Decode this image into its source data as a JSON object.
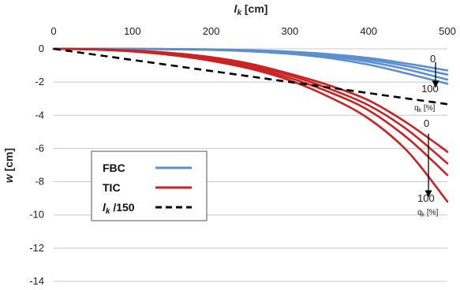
{
  "chart_data": {
    "type": "line",
    "x_axis": {
      "label": "lk [cm]",
      "position": "top",
      "range": [
        0,
        500
      ],
      "ticks": [
        0,
        100,
        200,
        300,
        400,
        500
      ]
    },
    "y_axis": {
      "label": "w [cm]",
      "range": [
        -14,
        0
      ],
      "ticks": [
        0,
        -2,
        -4,
        -6,
        -8,
        -10,
        -12,
        -14
      ]
    },
    "grid": "horizontal",
    "legend": {
      "placement": "lower-left",
      "entries": [
        {
          "label": "FBC",
          "color": "#5b8fd0",
          "style": "solid"
        },
        {
          "label": "TIC",
          "color": "#cc2222",
          "style": "solid"
        },
        {
          "label": "lk /150",
          "color": "#000000",
          "style": "dashed"
        }
      ]
    },
    "series": [
      {
        "group": "FBC",
        "color": "#5b8fd0",
        "x": [
          0,
          100,
          200,
          250,
          300,
          350,
          400,
          450,
          500
        ],
        "y": [
          0,
          0,
          -0.03,
          -0.08,
          -0.17,
          -0.32,
          -0.55,
          -0.9,
          -1.3
        ]
      },
      {
        "group": "FBC",
        "color": "#5b8fd0",
        "x": [
          0,
          100,
          200,
          250,
          300,
          350,
          400,
          450,
          500
        ],
        "y": [
          0,
          0,
          -0.04,
          -0.1,
          -0.2,
          -0.38,
          -0.65,
          -1.05,
          -1.55
        ]
      },
      {
        "group": "FBC",
        "color": "#5b8fd0",
        "x": [
          0,
          100,
          200,
          250,
          300,
          350,
          400,
          450,
          500
        ],
        "y": [
          0,
          0,
          -0.05,
          -0.12,
          -0.25,
          -0.45,
          -0.78,
          -1.25,
          -1.85
        ]
      },
      {
        "group": "FBC",
        "color": "#5b8fd0",
        "x": [
          0,
          100,
          200,
          250,
          300,
          350,
          400,
          450,
          500
        ],
        "y": [
          0,
          -0.01,
          -0.06,
          -0.15,
          -0.3,
          -0.55,
          -0.95,
          -1.5,
          -2.1
        ]
      },
      {
        "group": "TIC",
        "color": "#cc2222",
        "x": [
          0,
          50,
          100,
          150,
          200,
          250,
          300,
          350,
          400,
          450,
          500
        ],
        "y": [
          0,
          -0.02,
          -0.1,
          -0.25,
          -0.5,
          -0.9,
          -1.5,
          -2.2,
          -3.1,
          -4.5,
          -6.2
        ]
      },
      {
        "group": "TIC",
        "color": "#cc2222",
        "x": [
          0,
          50,
          100,
          150,
          200,
          250,
          300,
          350,
          400,
          450,
          500
        ],
        "y": [
          0,
          -0.03,
          -0.12,
          -0.3,
          -0.6,
          -1.0,
          -1.6,
          -2.4,
          -3.4,
          -4.9,
          -6.9
        ]
      },
      {
        "group": "TIC",
        "color": "#cc2222",
        "x": [
          0,
          50,
          100,
          150,
          200,
          250,
          300,
          350,
          400,
          450,
          500
        ],
        "y": [
          0,
          -0.03,
          -0.14,
          -0.34,
          -0.66,
          -1.1,
          -1.75,
          -2.6,
          -3.7,
          -5.4,
          -7.6
        ]
      },
      {
        "group": "TIC",
        "color": "#cc2222",
        "x": [
          0,
          50,
          100,
          150,
          200,
          250,
          300,
          350,
          400,
          450,
          500
        ],
        "y": [
          0,
          -0.04,
          -0.16,
          -0.38,
          -0.72,
          -1.2,
          -1.9,
          -2.9,
          -4.2,
          -6.2,
          -9.2
        ]
      },
      {
        "group": "lk /150",
        "color": "#000000",
        "dashed": true,
        "x": [
          0,
          500
        ],
        "y": [
          0,
          -3.33
        ]
      }
    ],
    "annotations": [
      {
        "text": "0",
        "x": 478,
        "y": -0.8
      },
      {
        "text": "100",
        "x": 467,
        "y": -2.6
      },
      {
        "text": "qk [%]",
        "x": 458,
        "y": -3.7
      },
      {
        "text": "0",
        "x": 470,
        "y": -4.7
      },
      {
        "text": "100",
        "x": 462,
        "y": -9.2
      },
      {
        "text": "qk [%]",
        "x": 462,
        "y": -10.0
      }
    ],
    "arrows": [
      {
        "from": [
          485,
          -0.8
        ],
        "to": [
          485,
          -2.3
        ]
      },
      {
        "from": [
          476,
          -5.1
        ],
        "to": [
          476,
          -8.9
        ]
      }
    ]
  }
}
